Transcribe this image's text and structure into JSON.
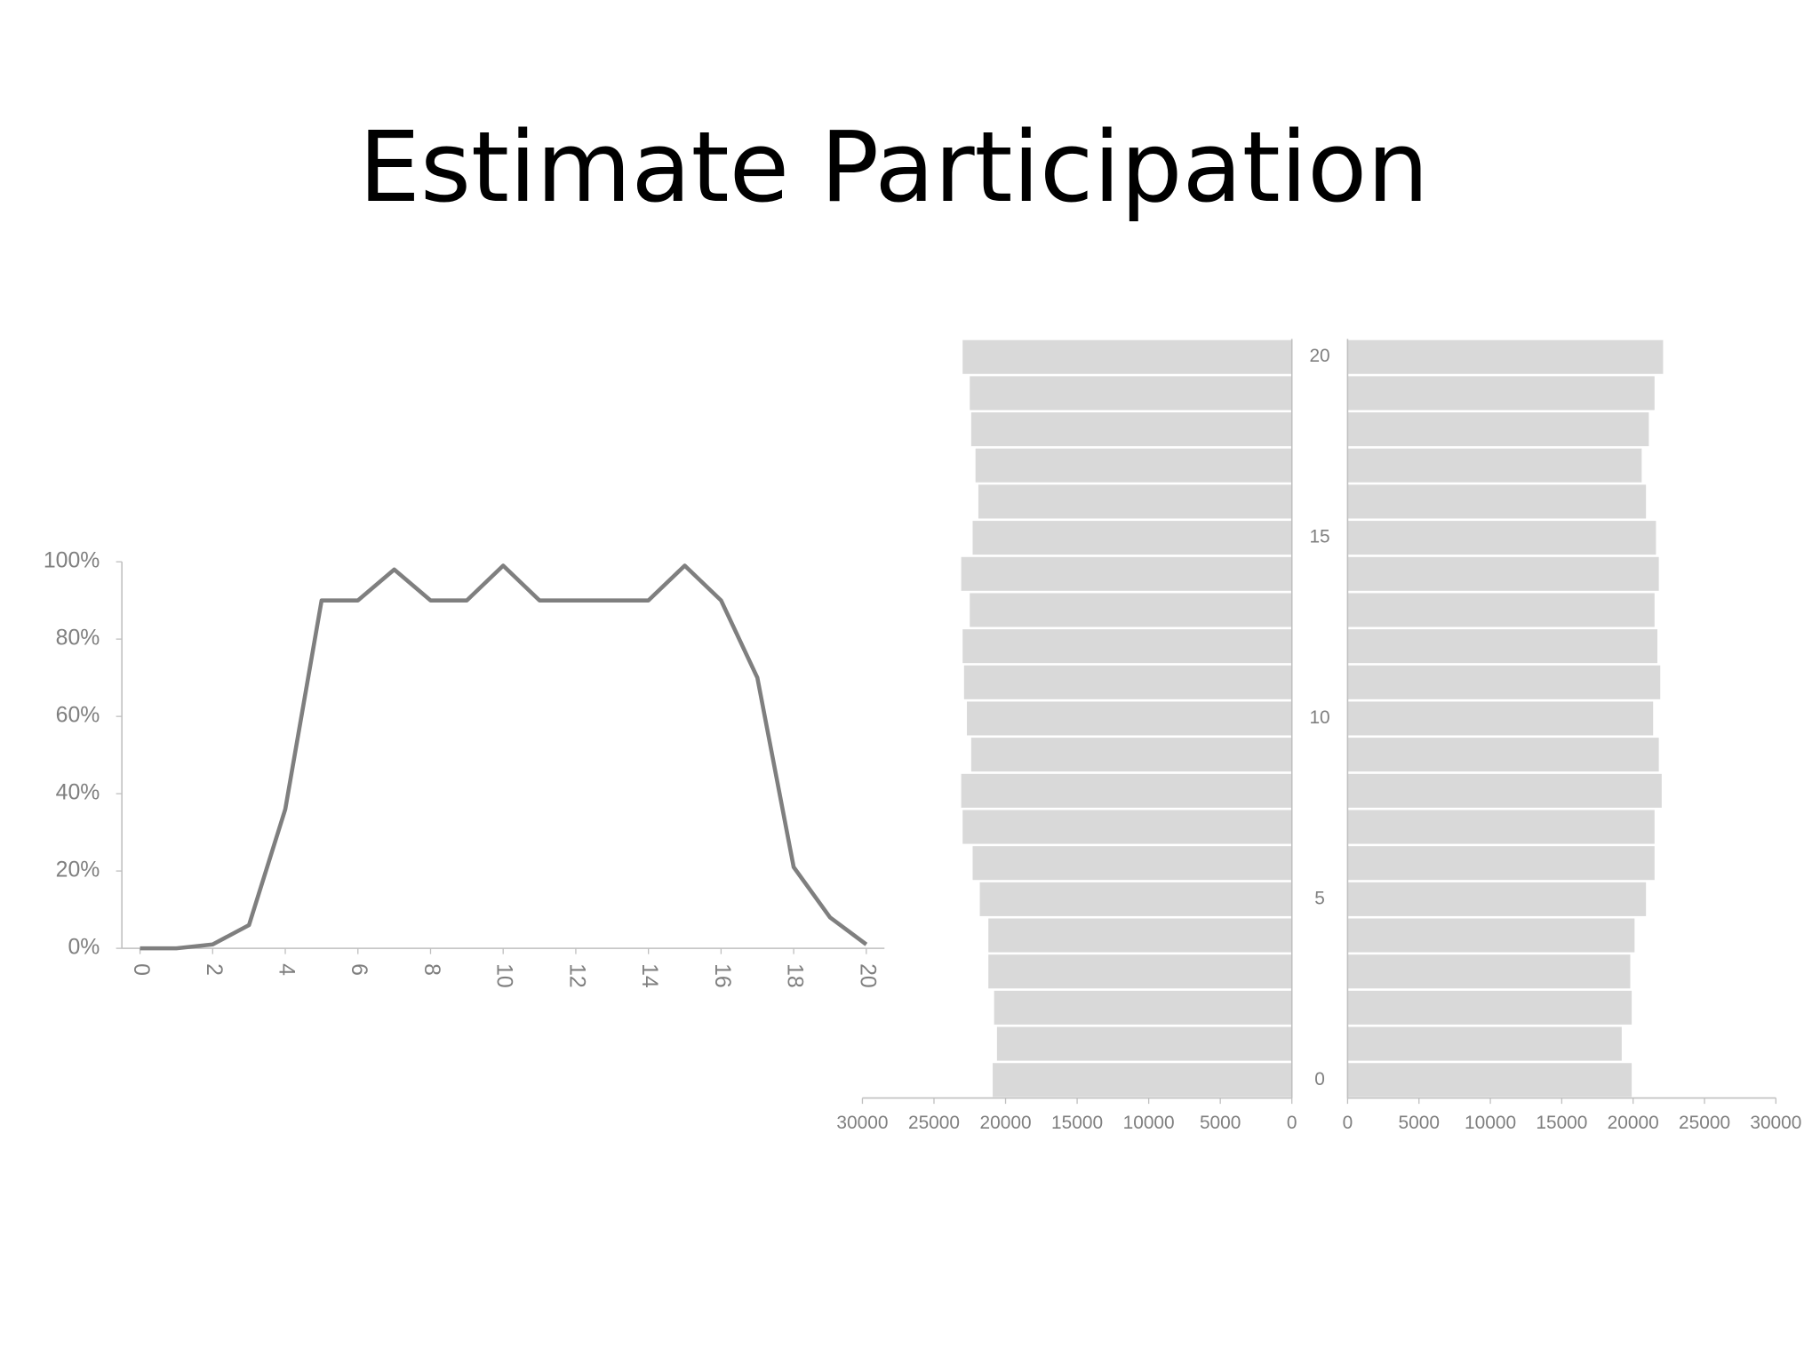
{
  "title": "Estimate Participation",
  "chart_data": [
    {
      "type": "line",
      "x": [
        0,
        1,
        2,
        3,
        4,
        5,
        6,
        7,
        8,
        9,
        10,
        11,
        12,
        13,
        14,
        15,
        16,
        17,
        18,
        19,
        20
      ],
      "values": [
        0,
        0,
        1,
        6,
        36,
        90,
        90,
        98,
        90,
        90,
        99,
        90,
        90,
        90,
        90,
        99,
        90,
        70,
        21,
        8,
        1
      ],
      "color": "#7f7f7f",
      "xlim": [
        -0.5,
        20.5
      ],
      "xticks": [
        0,
        2,
        4,
        6,
        8,
        10,
        12,
        14,
        16,
        18,
        20
      ],
      "ylim": [
        0,
        100
      ],
      "yticks": [
        {
          "value": 0,
          "label": "0%"
        },
        {
          "value": 20,
          "label": "20%"
        },
        {
          "value": 40,
          "label": "40%"
        },
        {
          "value": 60,
          "label": "60%"
        },
        {
          "value": 80,
          "label": "80%"
        },
        {
          "value": 100,
          "label": "100%"
        }
      ]
    },
    {
      "type": "pyramid",
      "categories": [
        0,
        null,
        null,
        null,
        null,
        5,
        null,
        null,
        null,
        null,
        10,
        null,
        null,
        null,
        null,
        15,
        null,
        null,
        null,
        null,
        20
      ],
      "series": [
        {
          "color": "#d9d9d9",
          "values": [
            20900,
            20600,
            20800,
            21200,
            21200,
            21800,
            22300,
            23000,
            23100,
            22400,
            22700,
            22900,
            23000,
            22500,
            23100,
            22300,
            21900,
            22100,
            22400,
            22500,
            23000
          ]
        },
        {
          "color": "#d9d9d9",
          "values": [
            19900,
            19200,
            19900,
            19800,
            20100,
            20900,
            21500,
            21500,
            22000,
            21800,
            21400,
            21900,
            21700,
            21500,
            21800,
            21600,
            20900,
            20600,
            21100,
            21500,
            22100
          ]
        }
      ],
      "xlim": [
        0,
        30000
      ],
      "xticks": [
        0,
        5000,
        10000,
        15000,
        20000,
        25000,
        30000
      ]
    }
  ]
}
